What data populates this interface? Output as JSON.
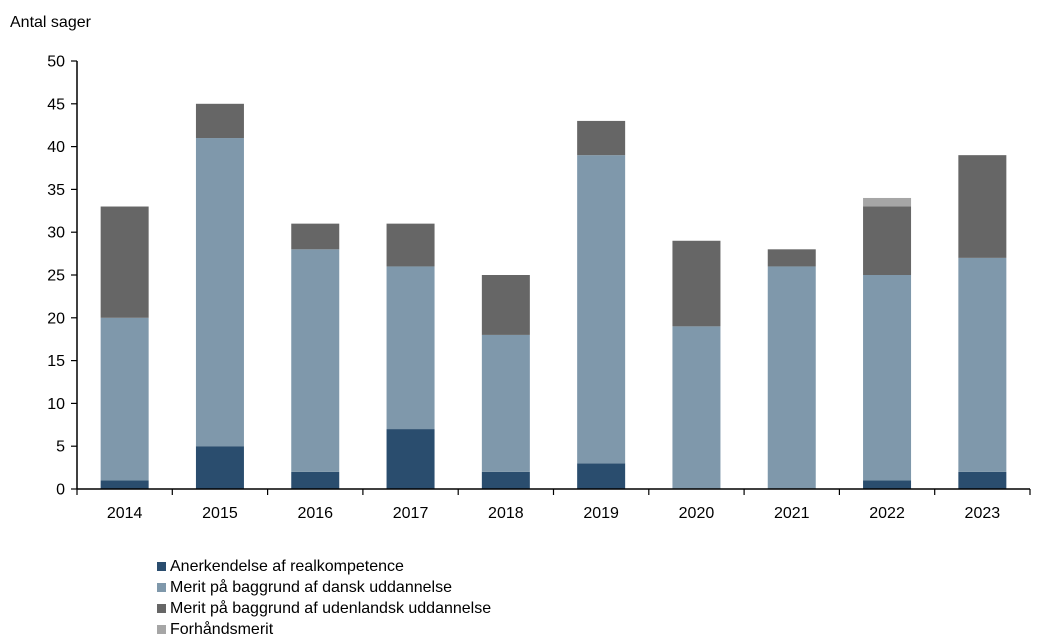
{
  "chart_data": {
    "type": "bar",
    "stacked": true,
    "ylabel": "Antal sager",
    "xlabel": "",
    "ylim": [
      0,
      50
    ],
    "yticks": [
      0,
      5,
      10,
      15,
      20,
      25,
      30,
      35,
      40,
      45,
      50
    ],
    "grid": false,
    "legend_position": "bottom",
    "categories": [
      "2014",
      "2015",
      "2016",
      "2017",
      "2018",
      "2019",
      "2020",
      "2021",
      "2022",
      "2023"
    ],
    "series": [
      {
        "name": "Anerkendelse af realkompetence",
        "color": "#2a4d6e",
        "values": [
          1,
          5,
          2,
          7,
          2,
          3,
          0,
          0,
          1,
          2
        ]
      },
      {
        "name": "Merit på baggrund af dansk uddannelse",
        "color": "#7f98ab",
        "values": [
          19,
          36,
          26,
          19,
          16,
          36,
          19,
          26,
          24,
          25
        ]
      },
      {
        "name": "Merit på baggrund af udenlandsk uddannelse",
        "color": "#666666",
        "values": [
          13,
          4,
          3,
          5,
          7,
          4,
          10,
          2,
          8,
          12
        ]
      },
      {
        "name": "Forhåndsmerit",
        "color": "#a6a6a6",
        "values": [
          0,
          0,
          0,
          0,
          0,
          0,
          0,
          0,
          1,
          0
        ]
      }
    ]
  }
}
